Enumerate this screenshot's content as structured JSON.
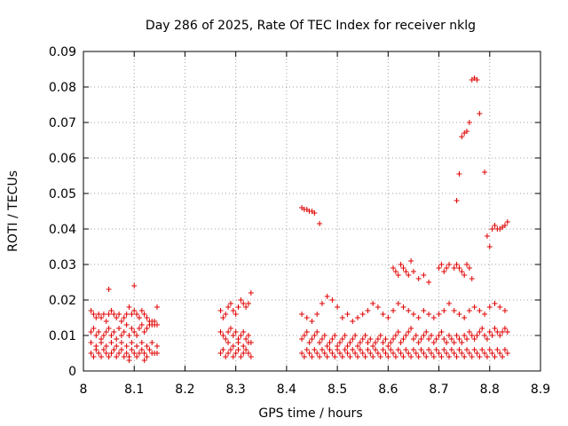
{
  "chart_data": {
    "type": "scatter",
    "title": "Day 286 of 2025, Rate Of TEC Index for receiver nklg",
    "xlabel": "GPS time / hours",
    "ylabel": "ROTI / TECUs",
    "xlim": [
      8.0,
      8.9
    ],
    "ylim": [
      0.0,
      0.09
    ],
    "xticks": [
      8.0,
      8.1,
      8.2,
      8.3,
      8.4,
      8.5,
      8.6,
      8.7,
      8.8,
      8.9
    ],
    "xtick_labels": [
      "8",
      "8.1",
      "8.2",
      "8.3",
      "8.4",
      "8.5",
      "8.6",
      "8.7",
      "8.8",
      "8.9"
    ],
    "yticks": [
      0.0,
      0.01,
      0.02,
      0.03,
      0.04,
      0.05,
      0.06,
      0.07,
      0.08,
      0.09
    ],
    "ytick_labels": [
      "0",
      "0.01",
      "0.02",
      "0.03",
      "0.04",
      "0.05",
      "0.06",
      "0.07",
      "0.08",
      "0.09"
    ],
    "grid": true,
    "marker": "+",
    "color": "#e00000",
    "series": [
      {
        "name": "ROTI",
        "x": [
          8.015,
          8.02,
          8.025,
          8.03,
          8.035,
          8.04,
          8.045,
          8.05,
          8.055,
          8.06,
          8.065,
          8.07,
          8.075,
          8.08,
          8.085,
          8.09,
          8.095,
          8.1,
          8.105,
          8.11,
          8.115,
          8.12,
          8.125,
          8.13,
          8.135,
          8.14,
          8.145,
          8.015,
          8.02,
          8.025,
          8.03,
          8.035,
          8.04,
          8.045,
          8.05,
          8.055,
          8.06,
          8.065,
          8.07,
          8.075,
          8.08,
          8.085,
          8.09,
          8.095,
          8.1,
          8.105,
          8.11,
          8.115,
          8.12,
          8.125,
          8.13,
          8.135,
          8.14,
          8.145,
          8.015,
          8.02,
          8.025,
          8.03,
          8.035,
          8.04,
          8.045,
          8.05,
          8.055,
          8.06,
          8.065,
          8.07,
          8.075,
          8.08,
          8.085,
          8.09,
          8.095,
          8.1,
          8.105,
          8.11,
          8.115,
          8.12,
          8.125,
          8.13,
          8.135,
          8.14,
          8.145,
          8.015,
          8.025,
          8.035,
          8.045,
          8.055,
          8.065,
          8.075,
          8.085,
          8.095,
          8.105,
          8.115,
          8.125,
          8.135,
          8.145,
          8.05,
          8.1,
          8.09,
          8.12,
          8.27,
          8.275,
          8.28,
          8.285,
          8.29,
          8.295,
          8.3,
          8.305,
          8.31,
          8.315,
          8.32,
          8.325,
          8.33,
          8.27,
          8.275,
          8.28,
          8.285,
          8.29,
          8.295,
          8.3,
          8.305,
          8.31,
          8.315,
          8.32,
          8.325,
          8.33,
          8.27,
          8.275,
          8.28,
          8.285,
          8.29,
          8.295,
          8.3,
          8.305,
          8.31,
          8.315,
          8.32,
          8.325,
          8.33,
          8.285,
          8.295,
          8.305,
          8.315,
          8.325,
          8.43,
          8.435,
          8.44,
          8.445,
          8.45,
          8.455,
          8.46,
          8.465,
          8.47,
          8.475,
          8.48,
          8.485,
          8.49,
          8.495,
          8.5,
          8.505,
          8.51,
          8.515,
          8.52,
          8.525,
          8.53,
          8.535,
          8.54,
          8.545,
          8.55,
          8.555,
          8.56,
          8.565,
          8.57,
          8.575,
          8.58,
          8.585,
          8.59,
          8.595,
          8.6,
          8.605,
          8.61,
          8.615,
          8.62,
          8.625,
          8.63,
          8.635,
          8.64,
          8.645,
          8.65,
          8.655,
          8.66,
          8.665,
          8.67,
          8.675,
          8.68,
          8.685,
          8.69,
          8.695,
          8.7,
          8.705,
          8.71,
          8.715,
          8.72,
          8.725,
          8.73,
          8.735,
          8.74,
          8.745,
          8.75,
          8.755,
          8.76,
          8.765,
          8.77,
          8.775,
          8.78,
          8.785,
          8.79,
          8.795,
          8.8,
          8.805,
          8.81,
          8.815,
          8.82,
          8.825,
          8.83,
          8.835,
          8.43,
          8.435,
          8.44,
          8.445,
          8.45,
          8.455,
          8.46,
          8.465,
          8.47,
          8.475,
          8.48,
          8.485,
          8.49,
          8.495,
          8.5,
          8.505,
          8.51,
          8.515,
          8.52,
          8.525,
          8.53,
          8.535,
          8.54,
          8.545,
          8.55,
          8.555,
          8.56,
          8.565,
          8.57,
          8.575,
          8.58,
          8.585,
          8.59,
          8.595,
          8.6,
          8.605,
          8.61,
          8.615,
          8.62,
          8.625,
          8.63,
          8.635,
          8.64,
          8.645,
          8.65,
          8.655,
          8.66,
          8.665,
          8.67,
          8.675,
          8.68,
          8.685,
          8.69,
          8.695,
          8.7,
          8.705,
          8.71,
          8.715,
          8.72,
          8.725,
          8.73,
          8.735,
          8.74,
          8.745,
          8.75,
          8.755,
          8.76,
          8.765,
          8.77,
          8.775,
          8.78,
          8.785,
          8.79,
          8.795,
          8.8,
          8.805,
          8.81,
          8.815,
          8.82,
          8.825,
          8.83,
          8.835,
          8.43,
          8.44,
          8.45,
          8.46,
          8.47,
          8.48,
          8.49,
          8.5,
          8.51,
          8.52,
          8.53,
          8.54,
          8.55,
          8.56,
          8.57,
          8.58,
          8.59,
          8.6,
          8.61,
          8.62,
          8.63,
          8.64,
          8.65,
          8.66,
          8.67,
          8.68,
          8.69,
          8.7,
          8.71,
          8.72,
          8.73,
          8.74,
          8.75,
          8.76,
          8.77,
          8.78,
          8.79,
          8.8,
          8.81,
          8.82,
          8.83,
          8.43,
          8.44,
          8.45,
          8.455,
          8.465,
          8.435,
          8.445,
          8.61,
          8.615,
          8.62,
          8.625,
          8.63,
          8.635,
          8.64,
          8.645,
          8.65,
          8.66,
          8.67,
          8.68,
          8.7,
          8.705,
          8.71,
          8.715,
          8.72,
          8.73,
          8.735,
          8.74,
          8.745,
          8.75,
          8.755,
          8.76,
          8.765,
          8.735,
          8.74,
          8.745,
          8.75,
          8.755,
          8.76,
          8.765,
          8.77,
          8.775,
          8.78,
          8.79,
          8.795,
          8.8,
          8.805,
          8.81,
          8.815,
          8.82,
          8.825,
          8.83,
          8.835
        ],
        "y": [
          0.017,
          0.016,
          0.015,
          0.016,
          0.015,
          0.016,
          0.014,
          0.016,
          0.017,
          0.016,
          0.015,
          0.016,
          0.014,
          0.015,
          0.016,
          0.018,
          0.016,
          0.017,
          0.016,
          0.015,
          0.017,
          0.016,
          0.015,
          0.014,
          0.013,
          0.014,
          0.018,
          0.011,
          0.012,
          0.01,
          0.011,
          0.009,
          0.01,
          0.011,
          0.012,
          0.01,
          0.011,
          0.009,
          0.012,
          0.01,
          0.011,
          0.013,
          0.01,
          0.012,
          0.011,
          0.01,
          0.012,
          0.013,
          0.011,
          0.012,
          0.013,
          0.014,
          0.013,
          0.013,
          0.005,
          0.004,
          0.006,
          0.005,
          0.004,
          0.006,
          0.005,
          0.004,
          0.005,
          0.006,
          0.004,
          0.005,
          0.006,
          0.004,
          0.005,
          0.004,
          0.006,
          0.005,
          0.004,
          0.005,
          0.006,
          0.005,
          0.004,
          0.006,
          0.005,
          0.005,
          0.005,
          0.008,
          0.007,
          0.008,
          0.007,
          0.008,
          0.007,
          0.008,
          0.007,
          0.008,
          0.007,
          0.008,
          0.007,
          0.008,
          0.007,
          0.023,
          0.024,
          0.003,
          0.003,
          0.017,
          0.015,
          0.016,
          0.018,
          0.019,
          0.017,
          0.016,
          0.018,
          0.02,
          0.019,
          0.018,
          0.019,
          0.022,
          0.011,
          0.01,
          0.009,
          0.011,
          0.012,
          0.01,
          0.011,
          0.009,
          0.01,
          0.011,
          0.009,
          0.01,
          0.008,
          0.005,
          0.006,
          0.004,
          0.005,
          0.006,
          0.004,
          0.005,
          0.006,
          0.004,
          0.005,
          0.006,
          0.005,
          0.004,
          0.008,
          0.007,
          0.008,
          0.007,
          0.008,
          0.005,
          0.004,
          0.006,
          0.005,
          0.004,
          0.006,
          0.005,
          0.004,
          0.006,
          0.005,
          0.004,
          0.006,
          0.005,
          0.004,
          0.006,
          0.005,
          0.004,
          0.006,
          0.005,
          0.004,
          0.006,
          0.005,
          0.004,
          0.006,
          0.005,
          0.004,
          0.006,
          0.005,
          0.004,
          0.006,
          0.005,
          0.004,
          0.006,
          0.005,
          0.004,
          0.006,
          0.005,
          0.004,
          0.006,
          0.005,
          0.004,
          0.006,
          0.005,
          0.004,
          0.006,
          0.005,
          0.004,
          0.006,
          0.005,
          0.004,
          0.006,
          0.005,
          0.004,
          0.006,
          0.005,
          0.004,
          0.006,
          0.005,
          0.004,
          0.006,
          0.005,
          0.004,
          0.006,
          0.005,
          0.004,
          0.006,
          0.005,
          0.004,
          0.006,
          0.005,
          0.004,
          0.006,
          0.005,
          0.004,
          0.006,
          0.005,
          0.004,
          0.006,
          0.005,
          0.004,
          0.006,
          0.005,
          0.009,
          0.01,
          0.011,
          0.008,
          0.009,
          0.01,
          0.011,
          0.008,
          0.009,
          0.01,
          0.007,
          0.008,
          0.009,
          0.01,
          0.007,
          0.008,
          0.009,
          0.01,
          0.007,
          0.008,
          0.009,
          0.01,
          0.007,
          0.008,
          0.009,
          0.01,
          0.008,
          0.009,
          0.007,
          0.008,
          0.009,
          0.01,
          0.008,
          0.009,
          0.007,
          0.008,
          0.009,
          0.01,
          0.011,
          0.008,
          0.009,
          0.01,
          0.011,
          0.012,
          0.009,
          0.01,
          0.008,
          0.009,
          0.01,
          0.011,
          0.009,
          0.01,
          0.008,
          0.009,
          0.01,
          0.011,
          0.009,
          0.008,
          0.01,
          0.009,
          0.008,
          0.01,
          0.009,
          0.008,
          0.01,
          0.009,
          0.011,
          0.01,
          0.009,
          0.01,
          0.011,
          0.012,
          0.01,
          0.009,
          0.011,
          0.01,
          0.012,
          0.011,
          0.01,
          0.011,
          0.012,
          0.011,
          0.016,
          0.015,
          0.014,
          0.016,
          0.019,
          0.021,
          0.02,
          0.018,
          0.015,
          0.016,
          0.014,
          0.015,
          0.016,
          0.017,
          0.019,
          0.018,
          0.016,
          0.015,
          0.017,
          0.019,
          0.018,
          0.017,
          0.016,
          0.015,
          0.017,
          0.016,
          0.015,
          0.016,
          0.017,
          0.019,
          0.017,
          0.016,
          0.015,
          0.017,
          0.018,
          0.017,
          0.016,
          0.018,
          0.019,
          0.018,
          0.017,
          0.046,
          0.0455,
          0.045,
          0.0445,
          0.0415,
          0.0455,
          0.045,
          0.029,
          0.028,
          0.027,
          0.03,
          0.029,
          0.028,
          0.027,
          0.031,
          0.028,
          0.026,
          0.027,
          0.025,
          0.029,
          0.03,
          0.028,
          0.029,
          0.03,
          0.029,
          0.03,
          0.029,
          0.028,
          0.027,
          0.03,
          0.029,
          0.026,
          0.048,
          0.0555,
          0.066,
          0.067,
          0.0675,
          0.07,
          0.082,
          0.0825,
          0.082,
          0.0725,
          0.056,
          0.038,
          0.035,
          0.04,
          0.041,
          0.04,
          0.04,
          0.0405,
          0.041,
          0.042
        ]
      }
    ]
  }
}
